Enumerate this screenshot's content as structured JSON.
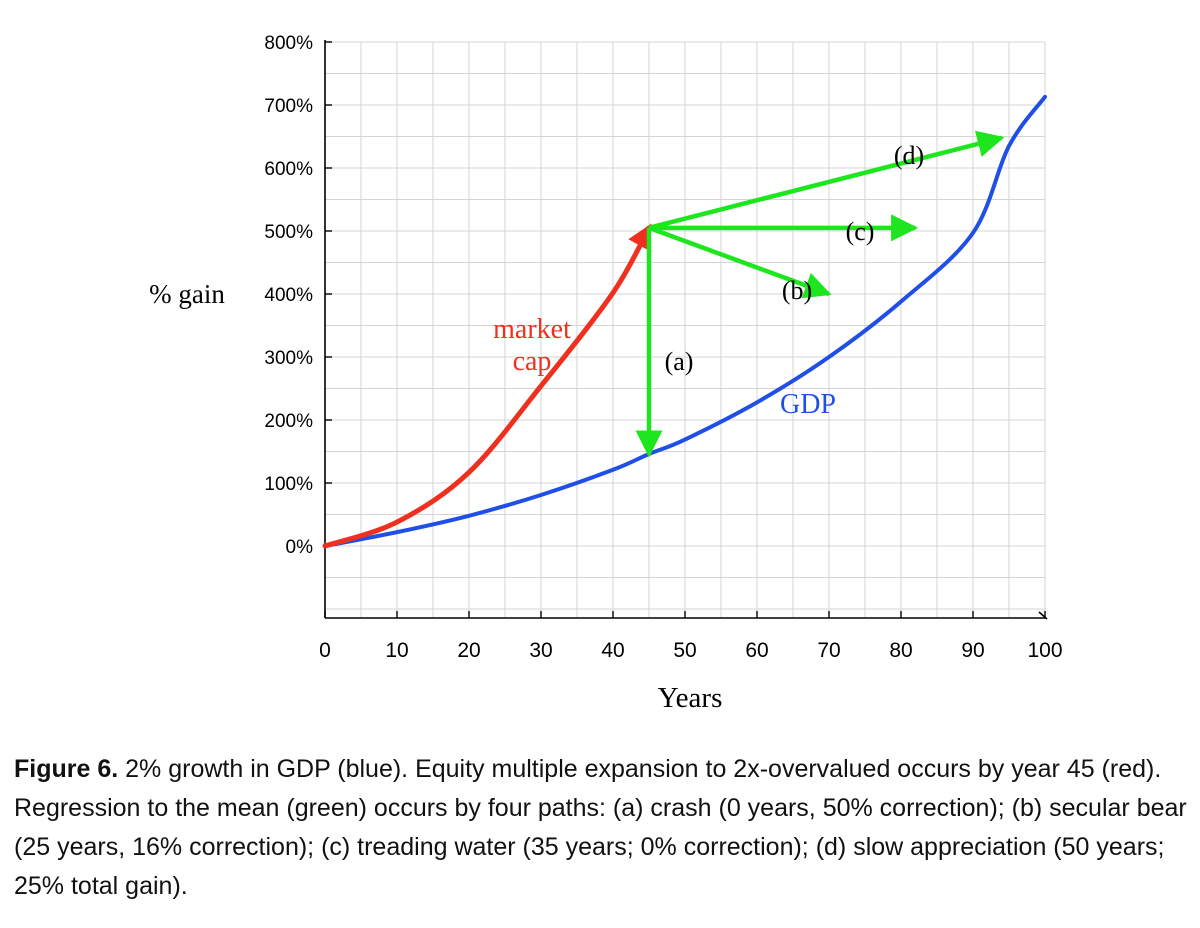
{
  "chart_data": {
    "type": "line",
    "title": "",
    "xlabel": "Years",
    "ylabel": "% gain",
    "xlim": [
      0,
      100
    ],
    "ylim": [
      -100,
      800
    ],
    "x_ticks": [
      "0",
      "10",
      "20",
      "30",
      "40",
      "50",
      "60",
      "70",
      "80",
      "90",
      "100"
    ],
    "y_ticks": [
      "0%",
      "100%",
      "200%",
      "300%",
      "400%",
      "500%",
      "600%",
      "700%",
      "800%"
    ],
    "grid": true,
    "colors": {
      "gdp": "#1f4fe6",
      "market_cap": "#f0301e",
      "regression": "#1ee61e"
    },
    "series": [
      {
        "name": "GDP",
        "label": "GDP",
        "color": "#1f4fe6",
        "points": [
          [
            0,
            0
          ],
          [
            10,
            22
          ],
          [
            20,
            48
          ],
          [
            30,
            81
          ],
          [
            40,
            121
          ],
          [
            45,
            146
          ],
          [
            50,
            169
          ],
          [
            60,
            228
          ],
          [
            70,
            300
          ],
          [
            80,
            388
          ],
          [
            90,
            497
          ],
          [
            95,
            635
          ],
          [
            100,
            713
          ]
        ]
      },
      {
        "name": "market cap",
        "label_line1": "market",
        "label_line2": "cap",
        "color": "#f0301e",
        "points": [
          [
            0,
            0
          ],
          [
            10,
            38
          ],
          [
            20,
            117
          ],
          [
            30,
            254
          ],
          [
            40,
            402
          ],
          [
            45,
            505
          ]
        ]
      }
    ],
    "arrows": [
      {
        "label": "(a)",
        "from": [
          45,
          505
        ],
        "to": [
          45,
          145
        ]
      },
      {
        "label": "(b)",
        "from": [
          45,
          505
        ],
        "to": [
          70,
          400
        ]
      },
      {
        "label": "(c)",
        "from": [
          45,
          505
        ],
        "to": [
          82,
          505
        ]
      },
      {
        "label": "(d)",
        "from": [
          45,
          505
        ],
        "to": [
          94,
          648
        ]
      }
    ]
  },
  "caption": {
    "figure_label": "Figure 6.",
    "text": " 2% growth in GDP (blue). Equity multiple expansion to 2x-overvalued occurs by year 45 (red). Regression to the mean (green) occurs by four paths: (a) crash (0 years, 50% correction); (b) secular bear (25 years, 16% correction); (c) treading water (35 years; 0% correction); (d) slow appreciation (50 years; 25% total gain)."
  }
}
